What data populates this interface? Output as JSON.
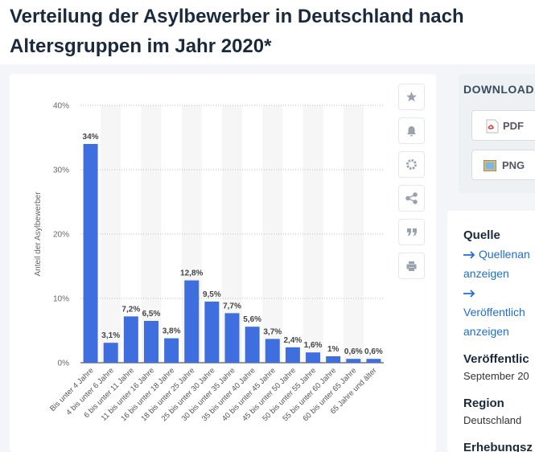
{
  "header": {
    "title": "Verteilung der Asylbewerber in Deutschland nach Altersgruppen im Jahr 2020*"
  },
  "chart_data": {
    "type": "bar",
    "y_label": "Anteil der Asylbewerber",
    "categories": [
      "Bis unter 4 Jahre",
      "4 bis unter 6 Jahre",
      "6 bis unter 11 Jahre",
      "11 bis unter 16 Jahre",
      "16 bis unter 18 Jahre",
      "18 bis unter 25 Jahre",
      "25 bis unter 30 Jahre",
      "30 bis unter 35 Jahre",
      "35 bis unter 40 Jahre",
      "40 bis unter 45 Jahre",
      "45 bis unter 50 Jahre",
      "50 bis unter 55 Jahre",
      "55 bis unter 60 Jahre",
      "60 bis unter 65 Jahre",
      "65 Jahre und älter"
    ],
    "values": [
      34,
      3.1,
      7.2,
      6.5,
      3.8,
      12.8,
      9.5,
      7.7,
      5.6,
      3.7,
      2.4,
      1.6,
      1,
      0.6,
      0.6
    ],
    "value_labels": [
      "34%",
      "3,1%",
      "7,2%",
      "6,5%",
      "3,8%",
      "12,8%",
      "9,5%",
      "7,7%",
      "5,6%",
      "3,7%",
      "2,4%",
      "1,6%",
      "1%",
      "0,6%",
      "0,6%"
    ],
    "color": "#3f6fde",
    "ylim": [
      0,
      40
    ],
    "yticks": [
      {
        "value": 0,
        "label": "0%"
      },
      {
        "value": 10,
        "label": "10%"
      },
      {
        "value": 20,
        "label": "20%"
      },
      {
        "value": 30,
        "label": "30%"
      },
      {
        "value": 40,
        "label": "40%"
      }
    ],
    "grid": true
  },
  "sidebar": {
    "download": "DOWNLOAD",
    "pdf": "PDF",
    "png": "PNG",
    "source_heading": "Quelle",
    "source_link": [
      "Quellenan",
      "anzeigen"
    ],
    "publisher_link": [
      "Veröffentlich",
      "anzeigen"
    ],
    "published_heading": "Veröffentlic",
    "published_value": "September 20",
    "region_heading": "Region",
    "region_value": "Deutschland",
    "survey_heading": "Erhebungsz"
  }
}
